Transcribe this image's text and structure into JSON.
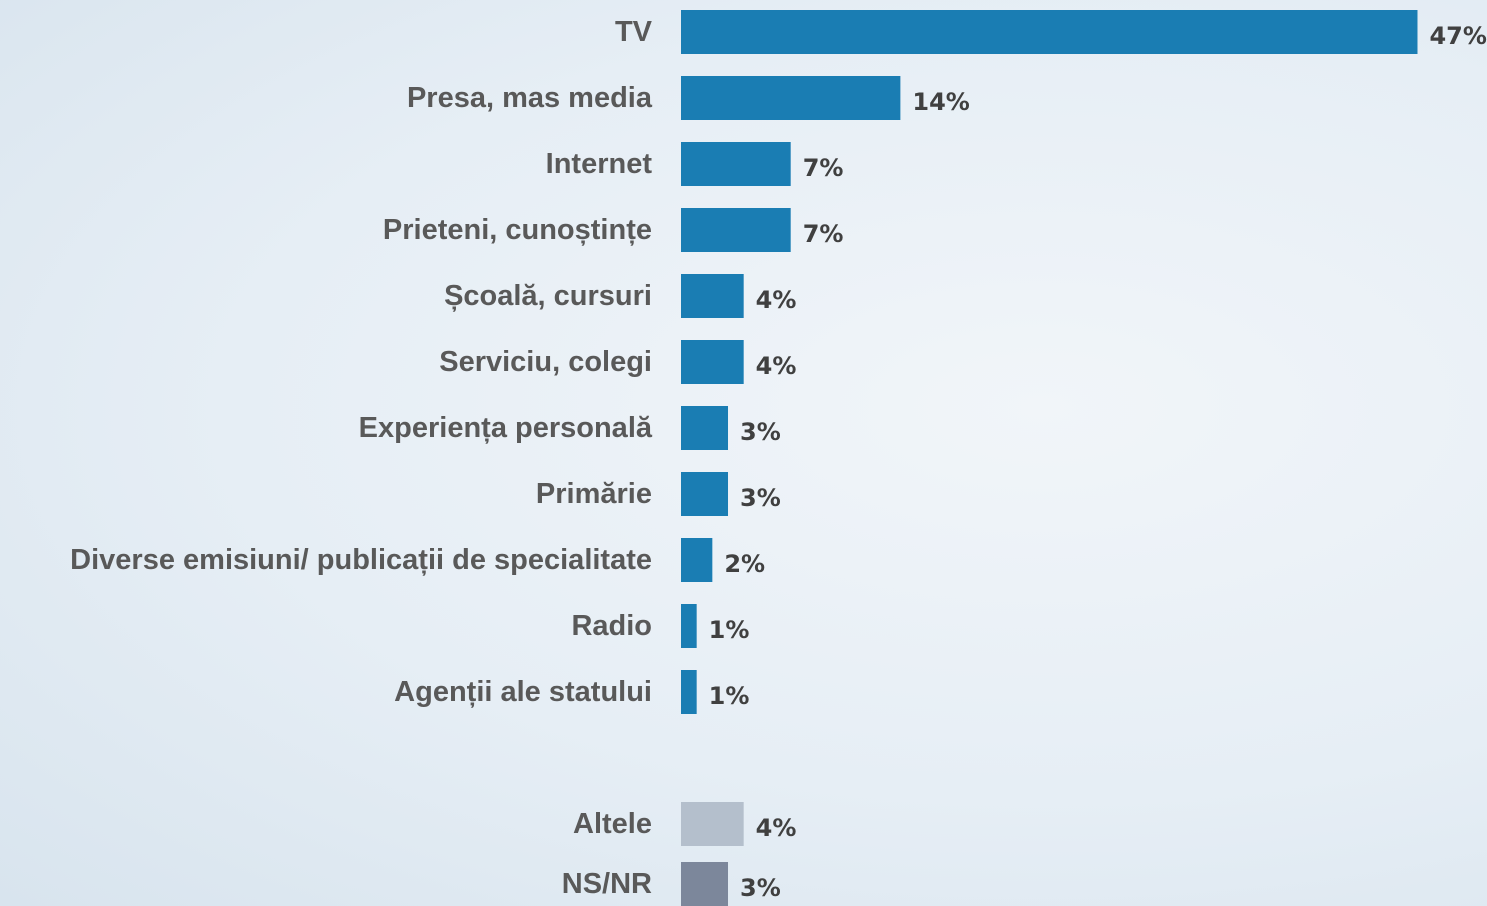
{
  "chart_data": {
    "type": "bar",
    "orientation": "horizontal",
    "value_suffix": "%",
    "colors": {
      "main": "#1a7db3",
      "other": "#b4bfcc",
      "dont_know": "#7c879b"
    },
    "categories": [
      "TV",
      "Presa, mas media",
      "Internet",
      "Prieteni, cunoștințe",
      "Școală, cursuri",
      "Serviciu, colegi",
      "Experiența personală",
      "Primărie",
      "Diverse emisiuni/ publicații de specialitate",
      "Radio",
      "Agenții ale statului",
      "Altele",
      "NS/NR"
    ],
    "values": [
      47,
      14,
      7,
      7,
      4,
      4,
      3,
      3,
      2,
      1,
      1,
      4,
      3
    ],
    "bar_color_keys": [
      "main",
      "main",
      "main",
      "main",
      "main",
      "main",
      "main",
      "main",
      "main",
      "main",
      "main",
      "other",
      "dont_know"
    ],
    "grid": false,
    "legend": "none"
  }
}
